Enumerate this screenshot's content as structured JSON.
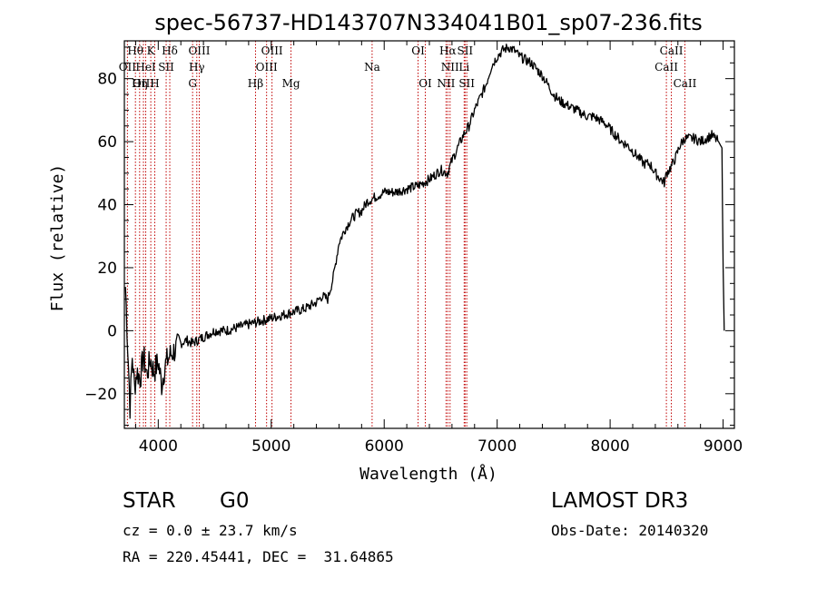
{
  "chart_data": {
    "type": "line",
    "title": "spec-56737-HD143707N334041B01_sp07-236.fits",
    "xlabel": "Wavelength (Å)",
    "ylabel": "Flux (relative)",
    "xlim": [
      3700,
      9100
    ],
    "ylim": [
      -31,
      92
    ],
    "xticks": [
      4000,
      5000,
      6000,
      7000,
      8000,
      9000
    ],
    "yticks": [
      -20,
      0,
      20,
      40,
      60,
      80
    ],
    "series": [
      {
        "name": "flux",
        "x": [
          3710,
          3730,
          3750,
          3770,
          3790,
          3810,
          3840,
          3870,
          3900,
          3930,
          3960,
          4000,
          4030,
          4060,
          4100,
          4150,
          4200,
          4250,
          4300,
          4400,
          4500,
          4600,
          4700,
          4800,
          4900,
          5000,
          5100,
          5200,
          5300,
          5400,
          5450,
          5500,
          5550,
          5600,
          5650,
          5700,
          5750,
          5800,
          5850,
          5900,
          5950,
          6000,
          6100,
          6200,
          6300,
          6400,
          6500,
          6560,
          6600,
          6650,
          6700,
          6750,
          6800,
          6850,
          6900,
          6950,
          7000,
          7050,
          7100,
          7150,
          7200,
          7250,
          7300,
          7350,
          7400,
          7450,
          7500,
          7550,
          7600,
          7650,
          7700,
          7750,
          7800,
          7850,
          7900,
          7950,
          8000,
          8050,
          8100,
          8150,
          8200,
          8250,
          8300,
          8350,
          8400,
          8450,
          8480,
          8500,
          8540,
          8580,
          8620,
          8660,
          8700,
          8750,
          8800,
          8850,
          8900,
          8960,
          8990,
          9000,
          9010
        ],
        "values": [
          14,
          -5,
          -24,
          -8,
          -18,
          -13,
          -15,
          -8,
          -14,
          -9,
          -13,
          -10,
          -17,
          -11,
          -8,
          -6,
          -4,
          -3,
          -4,
          -2,
          0,
          0,
          1,
          2,
          3,
          4,
          5,
          6,
          7,
          9,
          11,
          10,
          17,
          28,
          32,
          35,
          37,
          38,
          41,
          42,
          43,
          44,
          44,
          45,
          46,
          48,
          51,
          50,
          54,
          58,
          62,
          65,
          70,
          74,
          78,
          84,
          87,
          89,
          90,
          89,
          87,
          86,
          85,
          83,
          81,
          78,
          75,
          73,
          72,
          71,
          70,
          69,
          68,
          68,
          67,
          66,
          64,
          62,
          60,
          59,
          57,
          55,
          53,
          53,
          50,
          48,
          47,
          50,
          52,
          55,
          59,
          61,
          61,
          61,
          60,
          61,
          62,
          60,
          58,
          20,
          0
        ]
      }
    ],
    "emission_lines": [
      {
        "label": "Hθ",
        "wavelength": 3798,
        "row": 0
      },
      {
        "label": "OII",
        "wavelength": 3727,
        "row": 1
      },
      {
        "label": "OIII",
        "wavelength": 3869,
        "row": 2
      },
      {
        "label": "K",
        "wavelength": 3934,
        "row": 0
      },
      {
        "label": "HeI",
        "wavelength": 3889,
        "row": 1
      },
      {
        "label": "Hη",
        "wavelength": 3835,
        "row": 2
      },
      {
        "label": "Hδ",
        "wavelength": 4102,
        "row": 0
      },
      {
        "label": "SII",
        "wavelength": 4070,
        "row": 1
      },
      {
        "label": "H",
        "wavelength": 3969,
        "row": 2
      },
      {
        "label": "OIII",
        "wavelength": 4363,
        "row": 0
      },
      {
        "label": "Hγ",
        "wavelength": 4341,
        "row": 1
      },
      {
        "label": "G",
        "wavelength": 4304,
        "row": 2
      },
      {
        "label": "OIII",
        "wavelength": 5007,
        "row": 0
      },
      {
        "label": "OIII",
        "wavelength": 4959,
        "row": 1
      },
      {
        "label": "Hβ",
        "wavelength": 4861,
        "row": 2
      },
      {
        "label": "Mg",
        "wavelength": 5175,
        "row": 2
      },
      {
        "label": "Na",
        "wavelength": 5893,
        "row": 1
      },
      {
        "label": "OI",
        "wavelength": 6300,
        "row": 0
      },
      {
        "label": "OI",
        "wavelength": 6364,
        "row": 2
      },
      {
        "label": "Hα",
        "wavelength": 6563,
        "row": 0
      },
      {
        "label": "NII",
        "wavelength": 6583,
        "row": 1
      },
      {
        "label": "NII",
        "wavelength": 6548,
        "row": 2
      },
      {
        "label": "SII",
        "wavelength": 6716,
        "row": 0
      },
      {
        "label": "Li",
        "wavelength": 6708,
        "row": 1
      },
      {
        "label": "SII",
        "wavelength": 6731,
        "row": 2
      },
      {
        "label": "CaII",
        "wavelength": 8542,
        "row": 0
      },
      {
        "label": "CaII",
        "wavelength": 8498,
        "row": 1
      },
      {
        "label": "CaII",
        "wavelength": 8662,
        "row": 2
      }
    ],
    "colors": {
      "line": "#000000",
      "marker": "#c00000",
      "frame": "#000000"
    }
  },
  "info": {
    "class": "STAR",
    "subclass": "G0",
    "survey": "LAMOST DR3",
    "cz": "cz = 0.0 ± 23.7 km/s",
    "obs_date": "Obs-Date: 20140320",
    "coords": "RA = 220.45441, DEC =  31.64865"
  }
}
